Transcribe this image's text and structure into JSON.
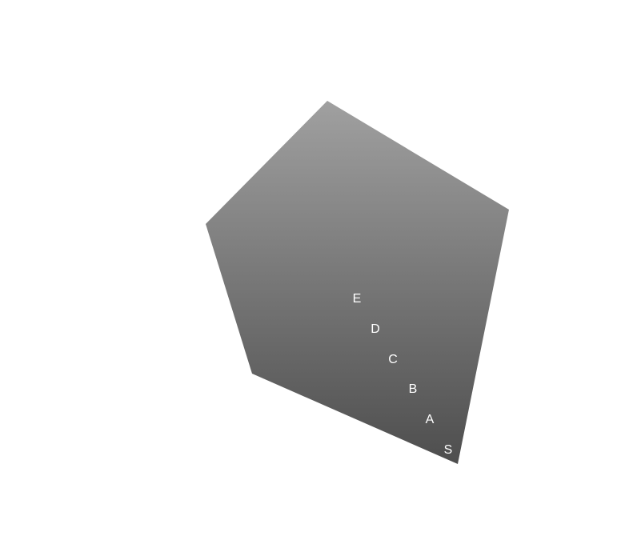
{
  "labels": [
    "S",
    "A",
    "B",
    "C",
    "D",
    "E"
  ]
}
